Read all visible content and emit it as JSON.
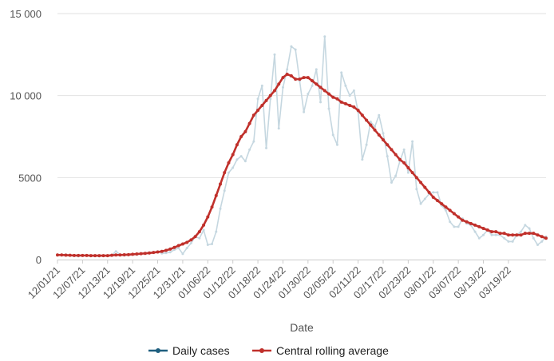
{
  "chart_data": {
    "type": "line",
    "title": "",
    "xlabel": "Date",
    "ylabel": "",
    "ylim": [
      0,
      15000
    ],
    "yticks": [
      0,
      5000,
      10000,
      15000
    ],
    "ytick_labels": [
      "0",
      "5000",
      "10 000",
      "15 000"
    ],
    "xticks": [
      "12/01/21",
      "12/07/21",
      "12/13/21",
      "12/19/21",
      "12/25/21",
      "12/31/21",
      "01/06/22",
      "01/12/22",
      "01/18/22",
      "01/24/22",
      "01/30/22",
      "02/05/22",
      "02/11/22",
      "02/17/22",
      "02/23/22",
      "03/01/22",
      "03/07/22",
      "03/13/22",
      "03/19/22"
    ],
    "x_start": "12/01/21",
    "x_end": "03/21/22",
    "grid": true,
    "legend_position": "bottom",
    "series": [
      {
        "name": "Daily cases",
        "color": "#c5d7e0",
        "marker_color": "#1f5f7f",
        "values": [
          300,
          260,
          310,
          250,
          230,
          200,
          260,
          250,
          240,
          260,
          200,
          250,
          220,
          260,
          500,
          300,
          250,
          300,
          320,
          300,
          350,
          380,
          420,
          450,
          500,
          380,
          400,
          450,
          600,
          700,
          350,
          700,
          1000,
          1400,
          1300,
          1800,
          900,
          950,
          1700,
          3100,
          4200,
          5300,
          5600,
          6100,
          6300,
          6000,
          6700,
          7200,
          9800,
          10600,
          6800,
          9800,
          12500,
          8000,
          10500,
          11600,
          13000,
          12800,
          10900,
          9000,
          10100,
          10600,
          11600,
          9600,
          13600,
          9200,
          7600,
          7000,
          11400,
          10600,
          10000,
          10300,
          9000,
          6100,
          7000,
          8400,
          8100,
          8800,
          7700,
          6300,
          4700,
          5100,
          6000,
          6700,
          5300,
          7200,
          4300,
          3400,
          3700,
          4000,
          4100,
          4100,
          3300,
          3000,
          2300,
          2000,
          2000,
          2500,
          2200,
          2100,
          1700,
          1300,
          1500,
          1800,
          1500,
          1500,
          1500,
          1300,
          1100,
          1100,
          1500,
          1700,
          2100,
          1900,
          1300,
          900,
          1100,
          1400
        ]
      },
      {
        "name": "Central rolling average",
        "color": "#c0302b",
        "values": [
          280,
          280,
          270,
          260,
          250,
          250,
          250,
          250,
          240,
          240,
          240,
          240,
          240,
          260,
          280,
          280,
          290,
          300,
          320,
          340,
          360,
          380,
          400,
          430,
          460,
          500,
          560,
          640,
          740,
          850,
          950,
          1050,
          1200,
          1400,
          1700,
          2100,
          2600,
          3200,
          3900,
          4600,
          5300,
          5900,
          6400,
          7000,
          7500,
          7800,
          8300,
          8800,
          9100,
          9400,
          9700,
          10000,
          10300,
          10700,
          11100,
          11300,
          11200,
          11000,
          11000,
          11100,
          11100,
          10900,
          10700,
          10500,
          10300,
          10100,
          9900,
          9800,
          9600,
          9500,
          9400,
          9300,
          9100,
          8800,
          8500,
          8200,
          7900,
          7600,
          7300,
          7000,
          6700,
          6400,
          6100,
          5900,
          5600,
          5300,
          5000,
          4700,
          4400,
          4100,
          3800,
          3600,
          3400,
          3200,
          3000,
          2800,
          2600,
          2400,
          2300,
          2200,
          2100,
          2000,
          1900,
          1800,
          1700,
          1700,
          1600,
          1600,
          1500,
          1500,
          1500,
          1500,
          1600,
          1600,
          1600,
          1500,
          1400,
          1300
        ]
      }
    ]
  }
}
